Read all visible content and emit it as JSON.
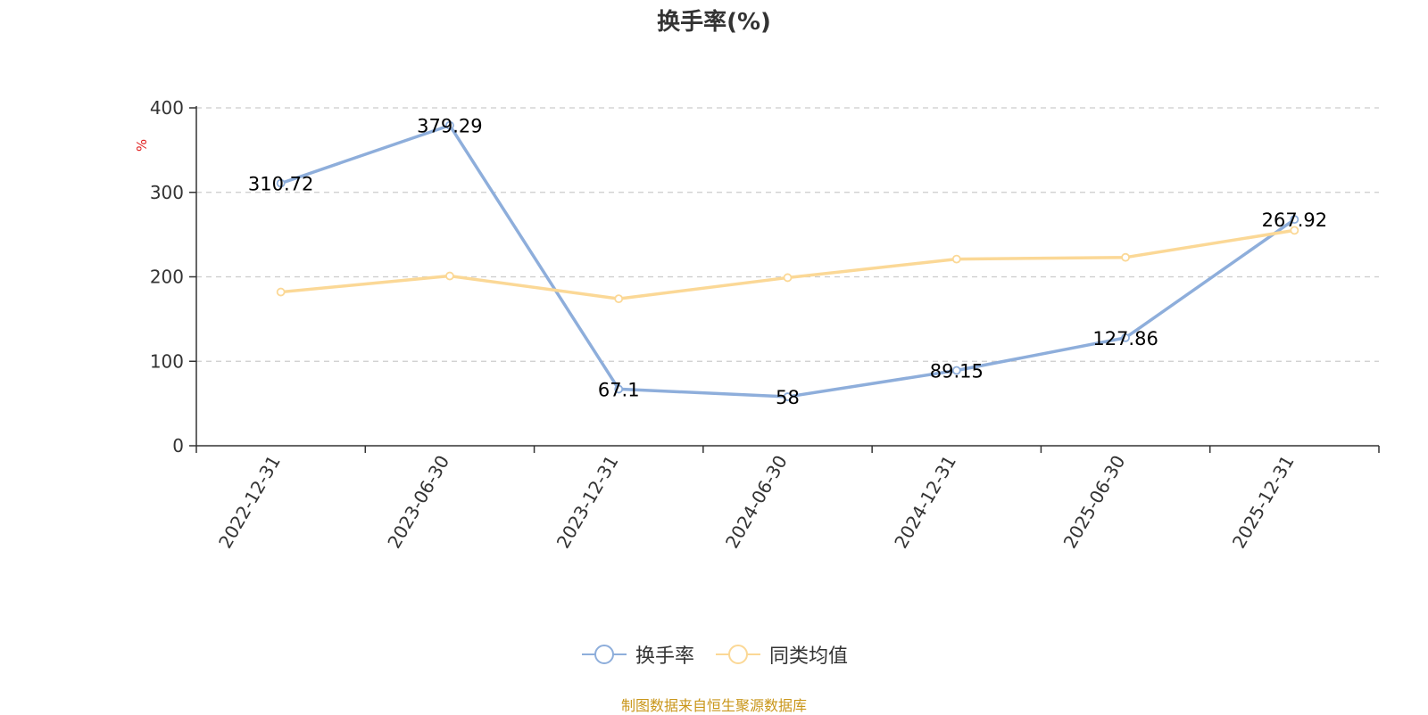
{
  "title": "换手率(%)",
  "source_note": "制图数据来自恒生聚源数据库",
  "colors": {
    "series_primary": "#8eaedb",
    "series_secondary": "#fbd896",
    "unit_label": "#e02020",
    "source_note": "#c9961a"
  },
  "legend": [
    {
      "name": "换手率",
      "icon": "circle-line-icon"
    },
    {
      "name": "同类均值",
      "icon": "circle-line-icon"
    }
  ],
  "chart_data": {
    "type": "line",
    "title": "换手率(%)",
    "ylabel": "%",
    "xlabel": "",
    "ylim": [
      0,
      400
    ],
    "yticks": [
      0,
      100,
      200,
      300,
      400
    ],
    "grid": true,
    "legend_position": "bottom",
    "categories": [
      "2022-12-31",
      "2023-06-30",
      "2023-12-31",
      "2024-06-30",
      "2024-12-31",
      "2025-06-30",
      "2025-12-31"
    ],
    "series": [
      {
        "name": "换手率",
        "values": [
          310.72,
          379.29,
          67.1,
          58,
          89.15,
          127.86,
          267.92
        ],
        "labels": [
          "310.72",
          "379.29",
          "67.1",
          "58",
          "89.15",
          "127.86",
          "267.92"
        ]
      },
      {
        "name": "同类均值",
        "values": [
          182,
          201,
          174,
          199,
          221,
          223,
          255
        ]
      }
    ]
  }
}
